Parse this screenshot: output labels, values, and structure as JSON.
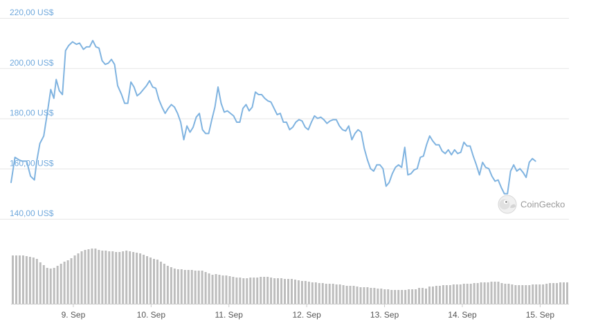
{
  "chart_data": [
    {
      "type": "line",
      "title": "",
      "xlabel": "",
      "ylabel": "",
      "ylim": [
        140,
        220
      ],
      "y_ticks": [
        {
          "value": 220,
          "label": "220,00 US$"
        },
        {
          "value": 200,
          "label": "200,00 US$"
        },
        {
          "value": 180,
          "label": "180,00 US$"
        },
        {
          "value": 160,
          "label": "160,00 US$"
        },
        {
          "value": 140,
          "label": "140,00 US$"
        }
      ],
      "x_range": [
        0,
        7.17
      ],
      "x_ticks": [
        {
          "value": 0.8,
          "label": "9. Sep"
        },
        {
          "value": 1.8,
          "label": "10. Sep"
        },
        {
          "value": 2.8,
          "label": "11. Sep"
        },
        {
          "value": 3.8,
          "label": "12. Sep"
        },
        {
          "value": 4.8,
          "label": "13. Sep"
        },
        {
          "value": 5.8,
          "label": "14. Sep"
        },
        {
          "value": 6.8,
          "label": "15. Sep"
        }
      ],
      "grid": true,
      "color": "#7fb3e0",
      "series": [
        {
          "values": [
            [
              0.0,
              154.5
            ],
            [
              0.05,
              164.5
            ],
            [
              0.1,
              163.5
            ],
            [
              0.14,
              163
            ],
            [
              0.2,
              163
            ],
            [
              0.25,
              157
            ],
            [
              0.3,
              155.5
            ],
            [
              0.33,
              163
            ],
            [
              0.37,
              170
            ],
            [
              0.42,
              173
            ],
            [
              0.47,
              183
            ],
            [
              0.51,
              191.5
            ],
            [
              0.55,
              188
            ],
            [
              0.58,
              195.5
            ],
            [
              0.62,
              191
            ],
            [
              0.66,
              189.5
            ],
            [
              0.7,
              207
            ],
            [
              0.74,
              209
            ],
            [
              0.79,
              210.5
            ],
            [
              0.84,
              209.5
            ],
            [
              0.88,
              210
            ],
            [
              0.93,
              207.5
            ],
            [
              0.97,
              208.5
            ],
            [
              1.01,
              208.5
            ],
            [
              1.05,
              211
            ],
            [
              1.09,
              208.5
            ],
            [
              1.13,
              208
            ],
            [
              1.17,
              203
            ],
            [
              1.21,
              201.5
            ],
            [
              1.25,
              202
            ],
            [
              1.29,
              203.5
            ],
            [
              1.33,
              201.5
            ],
            [
              1.37,
              193
            ],
            [
              1.42,
              189.5
            ],
            [
              1.46,
              186
            ],
            [
              1.5,
              186
            ],
            [
              1.54,
              194.5
            ],
            [
              1.58,
              192.5
            ],
            [
              1.62,
              189
            ],
            [
              1.66,
              190
            ],
            [
              1.7,
              191.5
            ],
            [
              1.74,
              193
            ],
            [
              1.78,
              195
            ],
            [
              1.82,
              192.5
            ],
            [
              1.86,
              192
            ],
            [
              1.9,
              187.5
            ],
            [
              1.94,
              184.5
            ],
            [
              1.98,
              182
            ],
            [
              2.02,
              184
            ],
            [
              2.06,
              185.5
            ],
            [
              2.1,
              184.5
            ],
            [
              2.14,
              182
            ],
            [
              2.18,
              178.5
            ],
            [
              2.22,
              171.5
            ],
            [
              2.26,
              177
            ],
            [
              2.3,
              174.5
            ],
            [
              2.34,
              176.5
            ],
            [
              2.38,
              180.5
            ],
            [
              2.42,
              182
            ],
            [
              2.46,
              175.5
            ],
            [
              2.5,
              174
            ],
            [
              2.54,
              174
            ],
            [
              2.58,
              179.5
            ],
            [
              2.62,
              184.5
            ],
            [
              2.66,
              192.5
            ],
            [
              2.7,
              186
            ],
            [
              2.74,
              182.5
            ],
            [
              2.78,
              183
            ],
            [
              2.82,
              182
            ],
            [
              2.86,
              181
            ],
            [
              2.9,
              178.5
            ],
            [
              2.94,
              178.5
            ],
            [
              2.98,
              184
            ],
            [
              3.02,
              185.5
            ],
            [
              3.06,
              183
            ],
            [
              3.1,
              184.5
            ],
            [
              3.14,
              190.5
            ],
            [
              3.18,
              189.5
            ],
            [
              3.22,
              189.5
            ],
            [
              3.26,
              188
            ],
            [
              3.3,
              187
            ],
            [
              3.34,
              186.5
            ],
            [
              3.38,
              184
            ],
            [
              3.42,
              181.5
            ],
            [
              3.46,
              182
            ],
            [
              3.5,
              178.5
            ],
            [
              3.54,
              178.5
            ],
            [
              3.58,
              175.5
            ],
            [
              3.62,
              176.5
            ],
            [
              3.66,
              178.5
            ],
            [
              3.7,
              179.5
            ],
            [
              3.74,
              179
            ],
            [
              3.78,
              176.5
            ],
            [
              3.82,
              175.5
            ],
            [
              3.86,
              178.5
            ],
            [
              3.9,
              181
            ],
            [
              3.94,
              180
            ],
            [
              3.98,
              180.5
            ],
            [
              4.02,
              179.5
            ],
            [
              4.06,
              178
            ],
            [
              4.1,
              179
            ],
            [
              4.14,
              179.5
            ],
            [
              4.18,
              179.5
            ],
            [
              4.22,
              177
            ],
            [
              4.26,
              175.5
            ],
            [
              4.3,
              175
            ],
            [
              4.34,
              177
            ],
            [
              4.38,
              171.5
            ],
            [
              4.42,
              174
            ],
            [
              4.46,
              175.5
            ],
            [
              4.5,
              174.5
            ],
            [
              4.54,
              168
            ],
            [
              4.58,
              163.5
            ],
            [
              4.62,
              160
            ],
            [
              4.66,
              159
            ],
            [
              4.7,
              161.5
            ],
            [
              4.74,
              161.5
            ],
            [
              4.78,
              160
            ],
            [
              4.82,
              153
            ],
            [
              4.86,
              154.5
            ],
            [
              4.9,
              158
            ],
            [
              4.94,
              160.5
            ],
            [
              4.98,
              161.5
            ],
            [
              5.02,
              160.5
            ],
            [
              5.06,
              168.5
            ],
            [
              5.1,
              157.5
            ],
            [
              5.14,
              158
            ],
            [
              5.18,
              159.5
            ],
            [
              5.22,
              160
            ],
            [
              5.26,
              164.5
            ],
            [
              5.3,
              165
            ],
            [
              5.34,
              169.5
            ],
            [
              5.38,
              173
            ],
            [
              5.42,
              171
            ],
            [
              5.46,
              169.5
            ],
            [
              5.5,
              169.5
            ],
            [
              5.54,
              167
            ],
            [
              5.58,
              166
            ],
            [
              5.62,
              167.5
            ],
            [
              5.66,
              165.5
            ],
            [
              5.7,
              167.5
            ],
            [
              5.74,
              166
            ],
            [
              5.78,
              166.5
            ],
            [
              5.82,
              170.5
            ],
            [
              5.86,
              169
            ],
            [
              5.9,
              169
            ],
            [
              5.94,
              165
            ],
            [
              5.98,
              161.5
            ],
            [
              6.02,
              157.5
            ],
            [
              6.06,
              162.5
            ],
            [
              6.1,
              160.5
            ],
            [
              6.14,
              160
            ],
            [
              6.18,
              157
            ],
            [
              6.22,
              155
            ],
            [
              6.26,
              155.5
            ],
            [
              6.3,
              152.5
            ],
            [
              6.34,
              150
            ],
            [
              6.38,
              150
            ],
            [
              6.42,
              159
            ],
            [
              6.46,
              161.5
            ],
            [
              6.5,
              159
            ],
            [
              6.54,
              160
            ],
            [
              6.58,
              158.5
            ],
            [
              6.62,
              156.5
            ],
            [
              6.66,
              162.5
            ],
            [
              6.7,
              164
            ],
            [
              6.74,
              163
            ]
          ]
        },
        {
          "name": "volume",
          "values": [
            70,
            70,
            70,
            70,
            69,
            68,
            67,
            65,
            60,
            56,
            52,
            51,
            52,
            55,
            58,
            61,
            63,
            66,
            70,
            73,
            76,
            78,
            79,
            80,
            80,
            78,
            77,
            77,
            76,
            76,
            75,
            75,
            76,
            77,
            76,
            75,
            74,
            73,
            71,
            69,
            67,
            65,
            64,
            61,
            58,
            55,
            53,
            51,
            50,
            50,
            49,
            49,
            49,
            48,
            48,
            48,
            46,
            44,
            42,
            43,
            42,
            41,
            41,
            40,
            39,
            38,
            38,
            37,
            37,
            38,
            38,
            38,
            39,
            39,
            39,
            38,
            37,
            37,
            37,
            36,
            36,
            36,
            35,
            34,
            33,
            33,
            32,
            31,
            31,
            30,
            30,
            29,
            29,
            29,
            28,
            28,
            27,
            26,
            26,
            26,
            25,
            24,
            24,
            24,
            23,
            23,
            22,
            22,
            21,
            21,
            20,
            20,
            20,
            20,
            20,
            21,
            21,
            21,
            23,
            23,
            22,
            25,
            25,
            26,
            26,
            27,
            27,
            27,
            28,
            28,
            28,
            29,
            29,
            29,
            30,
            30,
            31,
            31,
            31,
            32,
            32,
            32,
            30,
            29,
            29,
            28,
            27,
            27,
            27,
            27,
            27,
            28,
            28,
            28,
            28,
            29,
            30,
            30,
            30,
            31,
            31,
            31
          ]
        }
      ]
    }
  ],
  "watermark": {
    "text": "CoinGecko",
    "icon": "gecko-logo-icon"
  }
}
